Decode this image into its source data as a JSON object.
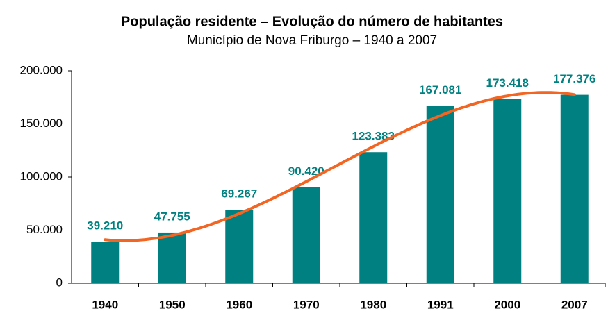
{
  "chart_data": {
    "type": "bar",
    "title": "População residente – Evolução do número de habitantes",
    "subtitle": "Município de Nova Friburgo – 1940 a 2007",
    "categories": [
      "1940",
      "1950",
      "1960",
      "1970",
      "1980",
      "1991",
      "2000",
      "2007"
    ],
    "values": [
      39210,
      47755,
      69267,
      90420,
      123383,
      167081,
      173418,
      177376
    ],
    "value_labels": [
      "39.210",
      "47.755",
      "69.267",
      "90.420",
      "123.383",
      "167.081",
      "173.418",
      "177.376"
    ],
    "color": "#008080",
    "label_color": "#008080",
    "trendline_color": "#f26522",
    "ylim": [
      0,
      200000
    ],
    "yticks": [
      0,
      {
        "value": 50000,
        "label": "50.000"
      },
      {
        "value": 100000,
        "label": "100.000"
      },
      {
        "value": 150000,
        "label": "150.000"
      },
      {
        "value": 200000,
        "label": "200.000"
      }
    ]
  }
}
